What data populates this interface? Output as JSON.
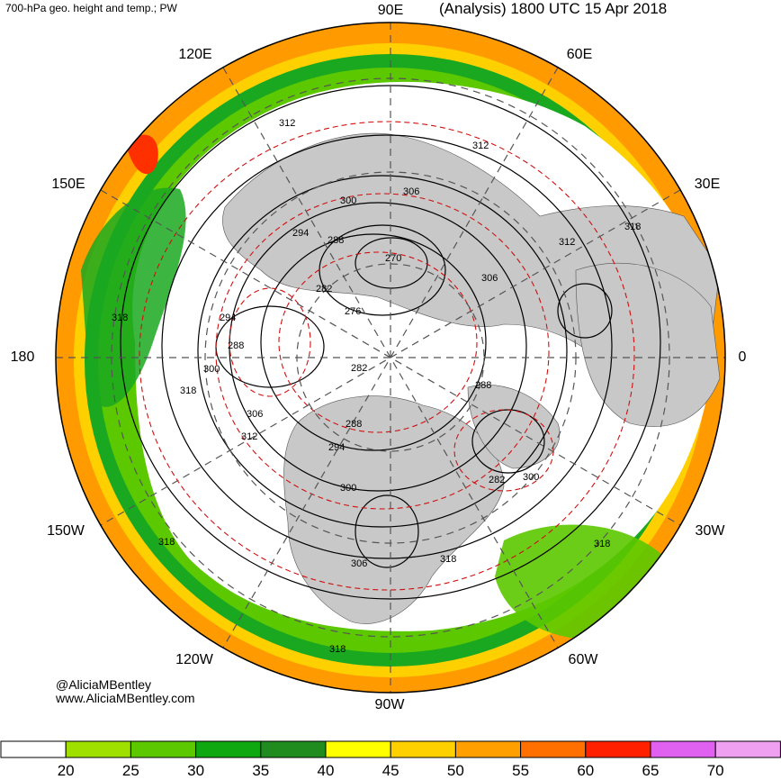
{
  "header": {
    "left_title": "700-hPa geo. height and temp.; PW",
    "right_title": "(Analysis) 1800 UTC 15 Apr 2018"
  },
  "longitude_labels": {
    "n90e": "90E",
    "n60e": "60E",
    "n120e": "120E",
    "n30e": "30E",
    "n150e": "150E",
    "n0": "0",
    "n180": "180",
    "n30w": "30W",
    "n150w": "150W",
    "n60w": "60W",
    "n120w": "120W",
    "n90w": "90W"
  },
  "credits": {
    "handle": "@AliciaMBentley",
    "site": "www.AliciaMBentley.com"
  },
  "contour_labels": {
    "h312a": "312",
    "h312b": "312",
    "h312c": "312",
    "h312d": "312",
    "h300a": "300",
    "h300b": "300",
    "h300c": "300",
    "h300d": "300",
    "h306a": "306",
    "h306b": "306",
    "h306c": "306",
    "h306d": "306",
    "h318a": "318",
    "h318b": "318",
    "h318c": "318",
    "h318d": "318",
    "h318e": "318",
    "h318f": "318",
    "h318g": "318",
    "h294a": "294",
    "h294b": "294",
    "h294c": "294",
    "h288a": "288",
    "h288b": "288",
    "h288c": "288",
    "h288d": "288",
    "h282a": "282",
    "h282b": "282",
    "h282c": "282",
    "h270": "270",
    "h276": "276"
  },
  "colorbar": {
    "ticks": [
      "20",
      "25",
      "30",
      "35",
      "40",
      "45",
      "50",
      "55",
      "60",
      "65",
      "70"
    ],
    "colors": [
      "#ffffff",
      "#a0e000",
      "#5cc800",
      "#10a810",
      "#208c20",
      "#ffff00",
      "#ffd000",
      "#ffa000",
      "#ff7000",
      "#ff2000",
      "#e060f0",
      "#f0a0f0"
    ]
  }
}
